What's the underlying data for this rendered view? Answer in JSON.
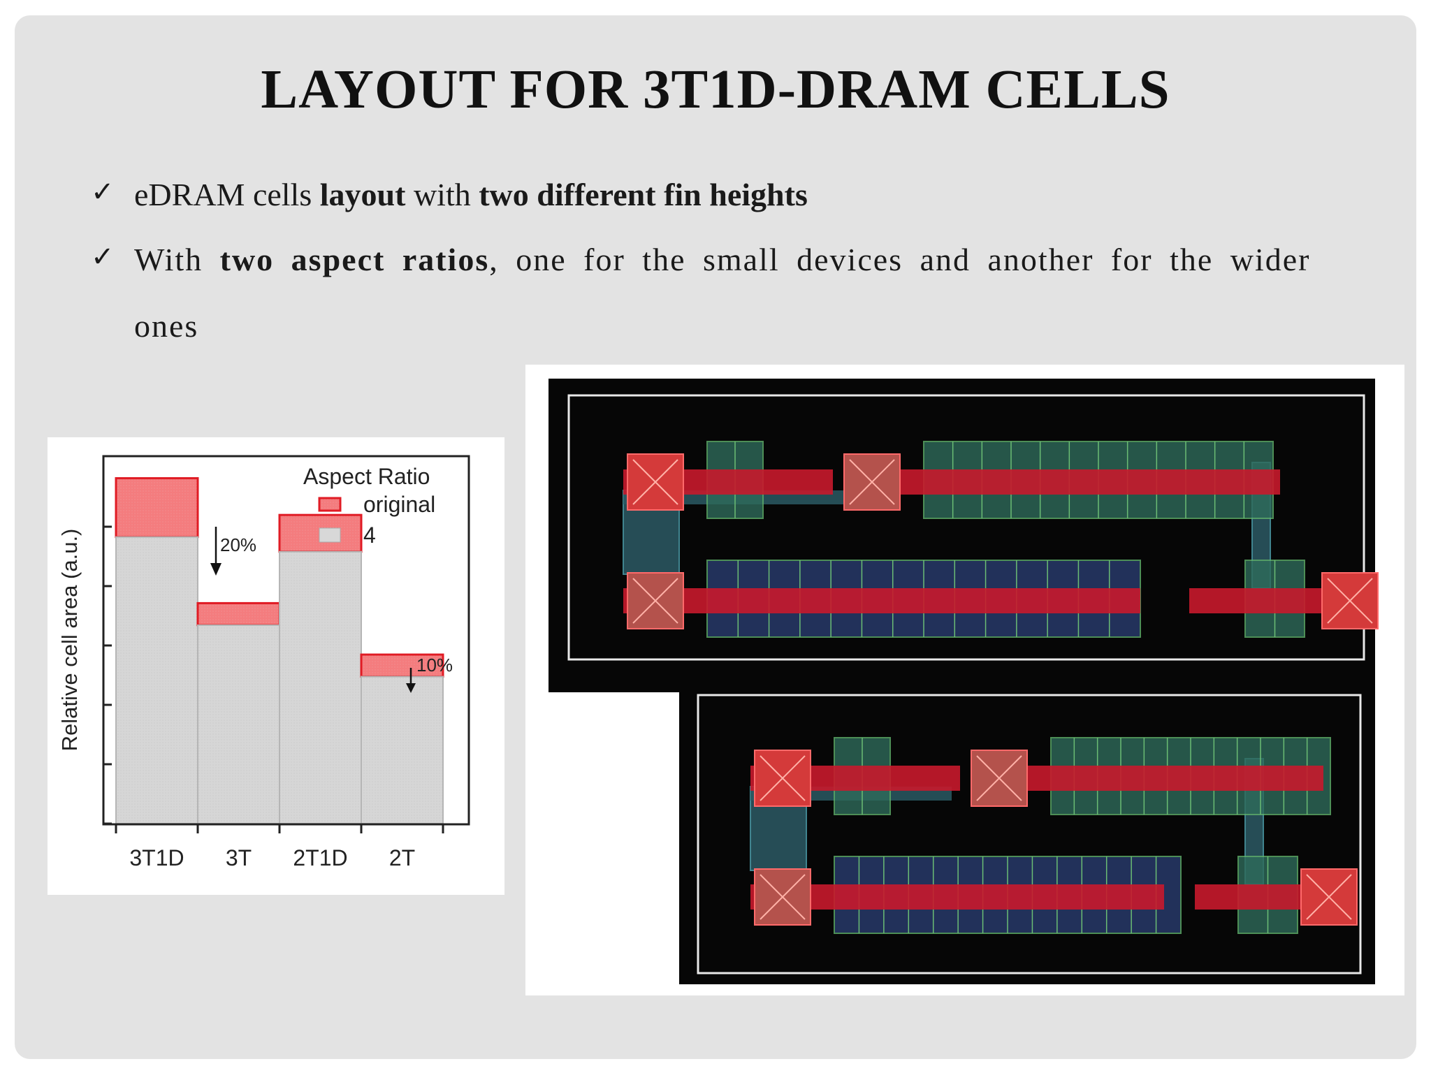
{
  "slide": {
    "title": "LAYOUT FOR 3T1D-DRAM CELLS",
    "bullets": [
      {
        "check": "✓",
        "parts": [
          "eDRAM cells ",
          "layout",
          " with ",
          "two different fin heights"
        ]
      },
      {
        "check": "✓",
        "parts": [
          "With ",
          "two aspect ratios",
          ", one for the small devices and another for the wider"
        ],
        "continuation": "ones"
      }
    ]
  },
  "chart_data": {
    "type": "bar",
    "ylabel": "Relative cell area (a.u.)",
    "categories": [
      "3T1D",
      "3T",
      "2T1D",
      "2T"
    ],
    "legend": {
      "title": "Aspect Ratio",
      "placement": "top-right"
    },
    "series": [
      {
        "name": "original",
        "color": "#f4787a",
        "values": [
          4.7,
          3.0,
          4.2,
          2.3
        ]
      },
      {
        "name": "4",
        "color": "#d8d8d8",
        "values": [
          3.9,
          2.7,
          3.7,
          2.0
        ]
      }
    ],
    "annotations": [
      "20%",
      "10%"
    ],
    "ylim": [
      0,
      5.0
    ]
  },
  "layout_image": {
    "description_free": true,
    "colors": {
      "background": "#0a0a0a",
      "poly": "#c8192c",
      "contact": "#d43a3a",
      "active": "#2e6b5a",
      "fin": "#2a3c70"
    }
  }
}
